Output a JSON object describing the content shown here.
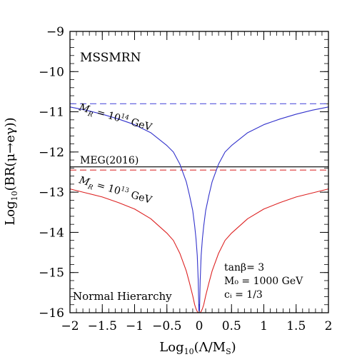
{
  "chart_data": {
    "type": "line",
    "xlabel_base": "Log",
    "xlabel_sub": "10",
    "xlabel_arg": "(Λ/M",
    "xlabel_arg_sub": "S",
    "xlabel_close": ")",
    "ylabel_base": "Log",
    "ylabel_sub": "10",
    "ylabel_arg": "(BR(μ→eγ))",
    "xlim": [
      -2,
      2
    ],
    "ylim": [
      -16,
      -9
    ],
    "xticks": [
      -2,
      -1.5,
      -1,
      -0.5,
      0,
      0.5,
      1,
      1.5,
      2
    ],
    "xtick_labels": [
      "−2",
      "−1.5",
      "−1",
      "−0.5",
      "0",
      "0.5",
      "1",
      "1.5",
      "2"
    ],
    "yticks": [
      -16,
      -15,
      -14,
      -13,
      -12,
      -11,
      -10,
      -9
    ],
    "ytick_labels": [
      "−16",
      "−15",
      "−14",
      "−13",
      "−12",
      "−11",
      "−10",
      "−9"
    ],
    "model_label": "MSSMRN",
    "hierarchy_label": "Normal Hierarchy",
    "params": [
      "tanβ= 3",
      "M₀ = 1000 GeV",
      "cᵢ = 1/3"
    ],
    "reference_lines": [
      {
        "name": "MEG(2016)",
        "y": -12.37,
        "style": "solid",
        "color": "#000000"
      },
      {
        "name": "",
        "y": -10.8,
        "style": "dashed",
        "color": "#5555dd"
      },
      {
        "name": "",
        "y": -12.45,
        "style": "dashed",
        "color": "#dd3333"
      }
    ],
    "series": [
      {
        "name": "M_R = 10^14 GeV",
        "label_main": "M",
        "label_sub": "R",
        "label_eq": " = 10",
        "label_sup": "14",
        "label_unit": " GeV",
        "color": "#3333cc",
        "x": [
          -2,
          -1.75,
          -1.5,
          -1.25,
          -1,
          -0.75,
          -0.5,
          -0.4,
          -0.3,
          -0.2,
          -0.15,
          -0.1,
          -0.07,
          -0.05,
          -0.03,
          -0.015,
          -0.005,
          0.005,
          0.015,
          0.03,
          0.05,
          0.07,
          0.1,
          0.15,
          0.2,
          0.3,
          0.4,
          0.5,
          0.75,
          1,
          1.25,
          1.5,
          1.75,
          2
        ],
        "y": [
          -10.88,
          -10.96,
          -11.06,
          -11.18,
          -11.32,
          -11.52,
          -11.84,
          -12.0,
          -12.3,
          -12.74,
          -13.08,
          -13.46,
          -13.84,
          -14.15,
          -14.58,
          -15.2,
          -15.95,
          -15.95,
          -15.2,
          -14.58,
          -14.15,
          -13.84,
          -13.46,
          -13.08,
          -12.74,
          -12.3,
          -12.0,
          -11.84,
          -11.52,
          -11.32,
          -11.18,
          -11.06,
          -10.96,
          -10.88
        ]
      },
      {
        "name": "M_R = 10^13 GeV",
        "label_main": "M",
        "label_sub": "R",
        "label_eq": " = 10",
        "label_sup": "13",
        "label_unit": " GeV",
        "color": "#dd2222",
        "x": [
          -2,
          -1.75,
          -1.5,
          -1.25,
          -1,
          -0.75,
          -0.5,
          -0.4,
          -0.3,
          -0.2,
          -0.15,
          -0.1,
          -0.07,
          -0.05,
          -0.03,
          -0.015,
          0.015,
          0.03,
          0.05,
          0.07,
          0.1,
          0.15,
          0.2,
          0.3,
          0.4,
          0.5,
          0.75,
          1,
          1.25,
          1.5,
          1.75,
          2
        ],
        "y": [
          -12.92,
          -13.02,
          -13.12,
          -13.26,
          -13.42,
          -13.66,
          -14.02,
          -14.2,
          -14.52,
          -14.96,
          -15.26,
          -15.58,
          -15.8,
          -15.9,
          -15.97,
          -16.0,
          -16.0,
          -15.97,
          -15.9,
          -15.8,
          -15.58,
          -15.26,
          -14.96,
          -14.52,
          -14.2,
          -14.02,
          -13.66,
          -13.42,
          -13.26,
          -13.12,
          -13.02,
          -12.92
        ]
      }
    ]
  }
}
